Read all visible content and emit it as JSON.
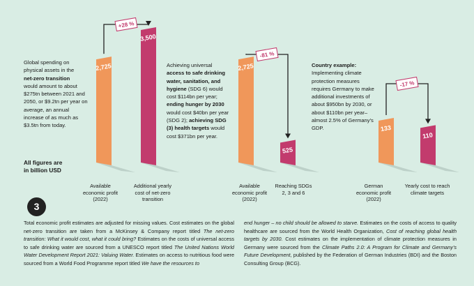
{
  "texts": {
    "net_zero": [
      "Global spending on",
      "physical assets in the",
      "net-zero transition",
      "would amount to about",
      "$275tn between 2021 and",
      "2050, or $9.2tn per year on",
      "average, an annual",
      "increase of as much as",
      "$3.5tn from today."
    ],
    "units": [
      "All figures are",
      "in billion USD"
    ],
    "sdg": [
      "Achieving universal",
      "access to safe drinking",
      "water, sanitation, and",
      "hygiene",
      " (SDG 6) would",
      "cost $114bn per year;",
      "ending hunger by 2030",
      "would cost $40bn per year",
      "(SDG 2); ",
      "achieving SDG",
      "(3) health targets",
      " would",
      "cost $371bn per year."
    ],
    "country": [
      "Country example:",
      "Implementing climate",
      "protection measures",
      "requires Germany to make",
      "additional investments of",
      "about $950bn by 2030, or",
      "about $110bn per year–",
      "almost 2.5% of Germany's",
      "GDP."
    ]
  },
  "labels": {
    "g1a": [
      "Available",
      "economic profit",
      "(2022)"
    ],
    "g1b": [
      "Additional yearly",
      "cost of net-zero",
      "transition"
    ],
    "g2a": [
      "Available",
      "economic profit",
      "(2022)"
    ],
    "g2b": [
      "Reaching SDGs",
      "2, 3 and 6"
    ],
    "g3a": [
      "German",
      "economic profit",
      "(2022)"
    ],
    "g3b": [
      "Yearly cost to reach",
      "climate targets"
    ]
  },
  "badge": "3",
  "footnote": {
    "col1": [
      {
        "t": "Total economic profit estimates are adjusted for missing values. Cost estimates on the global net-zero transition are taken from a McKinsey & Company report titled "
      },
      {
        "t": "The net-zero transition: What it would cost, what it could bring?",
        "i": true
      },
      {
        "t": " Estimates on the costs of universal access to safe drinking water are sourced from a UNESCO report titled "
      },
      {
        "t": "The United Nations World Water Development Report 2021: Valuing Water.",
        "i": true
      },
      {
        "t": " Estimates on access to nutritious food were sourced from a World Food Programme report titled "
      },
      {
        "t": "We have the resources to",
        "i": true
      }
    ],
    "col2": [
      {
        "t": "end hunger – no child should be allowed to starve.",
        "i": true
      },
      {
        "t": " Estimates on the costs of access to quality healthcare are sourced from the World Health Organization, "
      },
      {
        "t": "Cost of reaching global health targets by 2030.",
        "i": true
      },
      {
        "t": " Cost estimates on the implementation of climate protection measures in Germany were sourced from the "
      },
      {
        "t": "Climate Paths 2.0: A Program for Climate and Germany's Future Development",
        "i": true
      },
      {
        "t": ", published by the Federation of German Industries (BDI) and the Boston Consulting Group (BCG)."
      }
    ]
  },
  "colors": {
    "orange": "#f0975a",
    "magenta": "#c23b6d",
    "shadow": "#b9cdc5",
    "line": "#222222"
  },
  "chart_data": [
    {
      "type": "bar",
      "categories": [
        "Available economic profit (2022)",
        "Additional yearly cost of net-zero transition"
      ],
      "values": [
        2725,
        3500
      ],
      "change_label": "+28 %"
    },
    {
      "type": "bar",
      "categories": [
        "Available economic profit (2022)",
        "Reaching SDGs 2, 3 and 6"
      ],
      "values": [
        2725,
        525
      ],
      "change_label": "-81 %"
    },
    {
      "type": "bar",
      "categories": [
        "German economic profit (2022)",
        "Yearly cost to reach climate targets"
      ],
      "values": [
        133,
        110
      ],
      "change_label": "-17 %"
    }
  ]
}
